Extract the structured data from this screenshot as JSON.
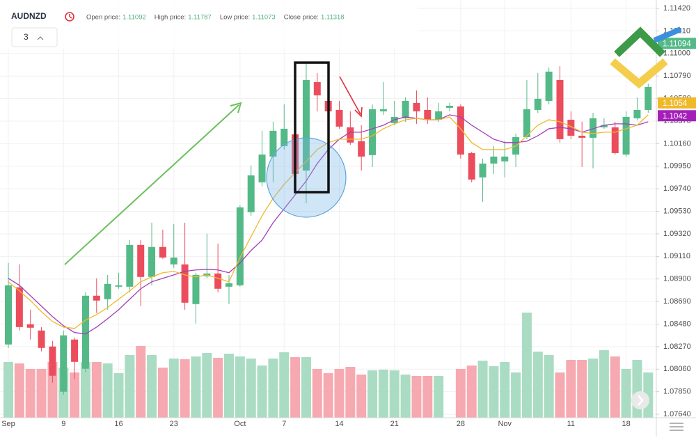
{
  "header": {
    "symbol": "AUDNZD",
    "interval": "3",
    "fields": [
      {
        "label": "Open price:",
        "value": 1.11092
      },
      {
        "label": "High price:",
        "value": 1.11787
      },
      {
        "label": "Low price:",
        "value": 1.11073
      },
      {
        "label": "Close price:",
        "value": 1.11318
      }
    ]
  },
  "chart_data": {
    "type": "candlestick",
    "categories": [
      "Sep",
      null,
      null,
      null,
      null,
      "9",
      null,
      null,
      null,
      null,
      "16",
      null,
      null,
      null,
      null,
      "23",
      null,
      null,
      null,
      null,
      null,
      "Oct",
      null,
      null,
      null,
      "7",
      null,
      null,
      null,
      null,
      "14",
      null,
      null,
      null,
      null,
      "21",
      null,
      null,
      null,
      null,
      null,
      "28",
      null,
      null,
      null,
      "Nov",
      null,
      null,
      null,
      null,
      null,
      "11",
      null,
      null,
      null,
      null,
      "18",
      null,
      null
    ],
    "open": [
      1.0829,
      1.08822,
      1.08478,
      1.0842,
      1.08271,
      1.0785,
      1.08336,
      1.08064,
      1.08744,
      1.08712,
      1.08828,
      1.08828,
      1.09217,
      1.08919,
      1.09198,
      1.09036,
      1.09036,
      1.08666,
      1.08925,
      1.08951,
      1.08828,
      1.08841,
      1.09522,
      1.098,
      1.1004,
      1.10137,
      1.10247,
      1.0991,
      1.10733,
      1.10558,
      1.10474,
      1.10312,
      1.10183,
      1.10053,
      1.10461,
      1.10351,
      1.10396,
      1.10539,
      1.10474,
      1.10383,
      1.10494,
      1.10507,
      1.10072,
      1.09846,
      1.09975,
      1.09995,
      1.10059,
      1.10221,
      1.10474,
      1.10558,
      1.10753,
      1.10383,
      1.10234,
      1.10215,
      1.10312,
      1.10312,
      1.10059,
      1.10396,
      1.10474
    ],
    "high": [
      1.09049,
      1.09036,
      1.08614,
      1.08452,
      1.08323,
      1.0842,
      1.08355,
      1.08776,
      1.08906,
      1.08938,
      1.08958,
      1.09262,
      1.09262,
      1.09424,
      1.0936,
      1.09411,
      1.09424,
      1.08958,
      1.09321,
      1.0923,
      1.08938,
      1.09586,
      1.09956,
      1.1028,
      1.10364,
      1.10526,
      1.10526,
      1.10902,
      1.10818,
      1.10688,
      1.10558,
      1.10461,
      1.10332,
      1.10526,
      1.10733,
      1.10558,
      1.10591,
      1.10656,
      1.10591,
      1.10539,
      1.10539,
      1.10526,
      1.10085,
      1.10021,
      1.10137,
      1.10189,
      1.10254,
      1.10753,
      1.10818,
      1.10869,
      1.10882,
      1.10461,
      1.10364,
      1.10448,
      1.10396,
      1.10364,
      1.10461,
      1.10591,
      1.1072
    ],
    "low": [
      1.08258,
      1.0842,
      1.08336,
      1.08226,
      1.07934,
      1.07824,
      1.07966,
      1.08031,
      1.08582,
      1.08614,
      1.08809,
      1.08776,
      1.08647,
      1.08841,
      1.09087,
      1.09003,
      1.08614,
      1.08485,
      1.08906,
      1.08776,
      1.08666,
      1.08828,
      1.09489,
      1.09761,
      1.098,
      1.10105,
      1.09846,
      1.09606,
      1.10461,
      1.10429,
      1.10299,
      1.1015,
      1.0991,
      1.09943,
      1.10429,
      1.10332,
      1.10364,
      1.10345,
      1.10345,
      1.10364,
      1.10461,
      1.10021,
      1.098,
      1.09619,
      1.09878,
      1.09846,
      1.09943,
      1.10202,
      1.10448,
      1.10526,
      1.1017,
      1.10202,
      1.09943,
      1.0993,
      1.10299,
      1.10059,
      1.1004,
      1.10377,
      1.10448
    ],
    "close": [
      1.08841,
      1.08452,
      1.08446,
      1.08258,
      1.07999,
      1.08375,
      1.08128,
      1.08744,
      1.08699,
      1.08854,
      1.08841,
      1.09217,
      1.08919,
      1.09198,
      1.091,
      1.091,
      1.08679,
      1.08938,
      1.08951,
      1.08809,
      1.08861,
      1.09567,
      1.09865,
      1.10059,
      1.1028,
      1.10299,
      1.09878,
      1.10753,
      1.1061,
      1.10461,
      1.10319,
      1.1017,
      1.1004,
      1.10481,
      1.10481,
      1.10409,
      1.10558,
      1.10461,
      1.10383,
      1.10461,
      1.10513,
      1.10059,
      1.09826,
      1.09975,
      1.1004,
      1.1004,
      1.10221,
      1.10481,
      1.10578,
      1.10831,
      1.10202,
      1.10234,
      1.10215,
      1.10396,
      1.10332,
      1.10072,
      1.10409,
      1.10474,
      1.10688
    ],
    "up_color": "#53b987",
    "down_color": "#eb4d5c",
    "lines": [
      {
        "color": "#a43fb8",
        "values": [
          1.08906,
          1.08841,
          1.08744,
          1.08647,
          1.0855,
          1.08465,
          1.08401,
          1.08388,
          1.08452,
          1.0853,
          1.08614,
          1.08712,
          1.08809,
          1.08874,
          1.08906,
          1.08938,
          1.08971,
          1.08984,
          1.0899,
          1.08984,
          1.08958,
          1.09049,
          1.09165,
          1.09262,
          1.09424,
          1.09554,
          1.09684,
          1.09813,
          1.09975,
          1.10105,
          1.10202,
          1.10267,
          1.10267,
          1.10299,
          1.10332,
          1.10383,
          1.10409,
          1.10396,
          1.10383,
          1.10383,
          1.10429,
          1.10409,
          1.10332,
          1.10267,
          1.10202,
          1.1017,
          1.1017,
          1.10183,
          1.10234,
          1.10299,
          1.10312,
          1.10299,
          1.10267,
          1.10299,
          1.10332,
          1.10345,
          1.10345,
          1.10332,
          1.10364
        ]
      },
      {
        "color": "#f0b92a",
        "values": [
          1.08874,
          1.08789,
          1.08699,
          1.08595,
          1.08504,
          1.08452,
          1.08439,
          1.08517,
          1.08569,
          1.08634,
          1.08712,
          1.08789,
          1.08874,
          1.08919,
          1.08958,
          1.08971,
          1.08938,
          1.08919,
          1.08938,
          1.08906,
          1.08874,
          1.091,
          1.09295,
          1.09489,
          1.09651,
          1.09781,
          1.09891,
          1.09995,
          1.10105,
          1.1017,
          1.10202,
          1.10202,
          1.10202,
          1.10234,
          1.10299,
          1.10345,
          1.10383,
          1.10396,
          1.10383,
          1.10383,
          1.10409,
          1.10299,
          1.1017,
          1.10105,
          1.10105,
          1.10105,
          1.10137,
          1.10234,
          1.10332,
          1.10383,
          1.10364,
          1.10319,
          1.10267,
          1.10254,
          1.10267,
          1.10267,
          1.10299,
          1.10332,
          1.10429
        ]
      }
    ],
    "volume": [
      80,
      78,
      70,
      70,
      80,
      72,
      65,
      80,
      80,
      78,
      64,
      90,
      103,
      90,
      72,
      85,
      84,
      88,
      93,
      86,
      92,
      88,
      85,
      75,
      85,
      94,
      87,
      87,
      70,
      64,
      70,
      73,
      62,
      68,
      69,
      68,
      62,
      60,
      60,
      60,
      null,
      70,
      75,
      82,
      74,
      80,
      65,
      151,
      95,
      90,
      65,
      83,
      83,
      85,
      97,
      88,
      70,
      83,
      65
    ],
    "volume_ylim": [
      0,
      600
    ],
    "volume_up_color": "#a9dcc3",
    "volume_down_color": "#f6a9b0",
    "price_markers": [
      {
        "value": 1.11094,
        "color": "#53b987"
      },
      {
        "value": 1.1054,
        "color": "#f0b92a"
      },
      {
        "value": 1.1042,
        "color": "#a41fb8"
      }
    ],
    "ylim": [
      1.07608,
      1.11498
    ],
    "yticks": [
      {
        "value": 1.1142,
        "label": "1.11420"
      },
      {
        "value": 1.1121,
        "label": "1.11210"
      },
      {
        "value": 1.11,
        "label": "1.11000"
      },
      {
        "value": 1.1079,
        "label": "1.10790"
      },
      {
        "value": 1.1058,
        "label": "1.10580"
      },
      {
        "value": 1.1037,
        "label": "1.10370"
      },
      {
        "value": 1.1016,
        "label": "1.10160"
      },
      {
        "value": 1.0995,
        "label": "1.09950"
      },
      {
        "value": 1.0974,
        "label": "1.09740"
      },
      {
        "value": 1.0953,
        "label": "1.09530"
      },
      {
        "value": 1.0932,
        "label": "1.09320"
      },
      {
        "value": 1.0911,
        "label": "1.09110"
      },
      {
        "value": 1.089,
        "label": "1.08900"
      },
      {
        "value": 1.0869,
        "label": "1.08690"
      },
      {
        "value": 1.0848,
        "label": "1.08480"
      },
      {
        "value": 1.0827,
        "label": "1.08270"
      },
      {
        "value": 1.0806,
        "label": "1.08060"
      },
      {
        "value": 1.0785,
        "label": "1.07850"
      },
      {
        "value": 1.0764,
        "label": "1.07640"
      }
    ],
    "grid": true
  }
}
